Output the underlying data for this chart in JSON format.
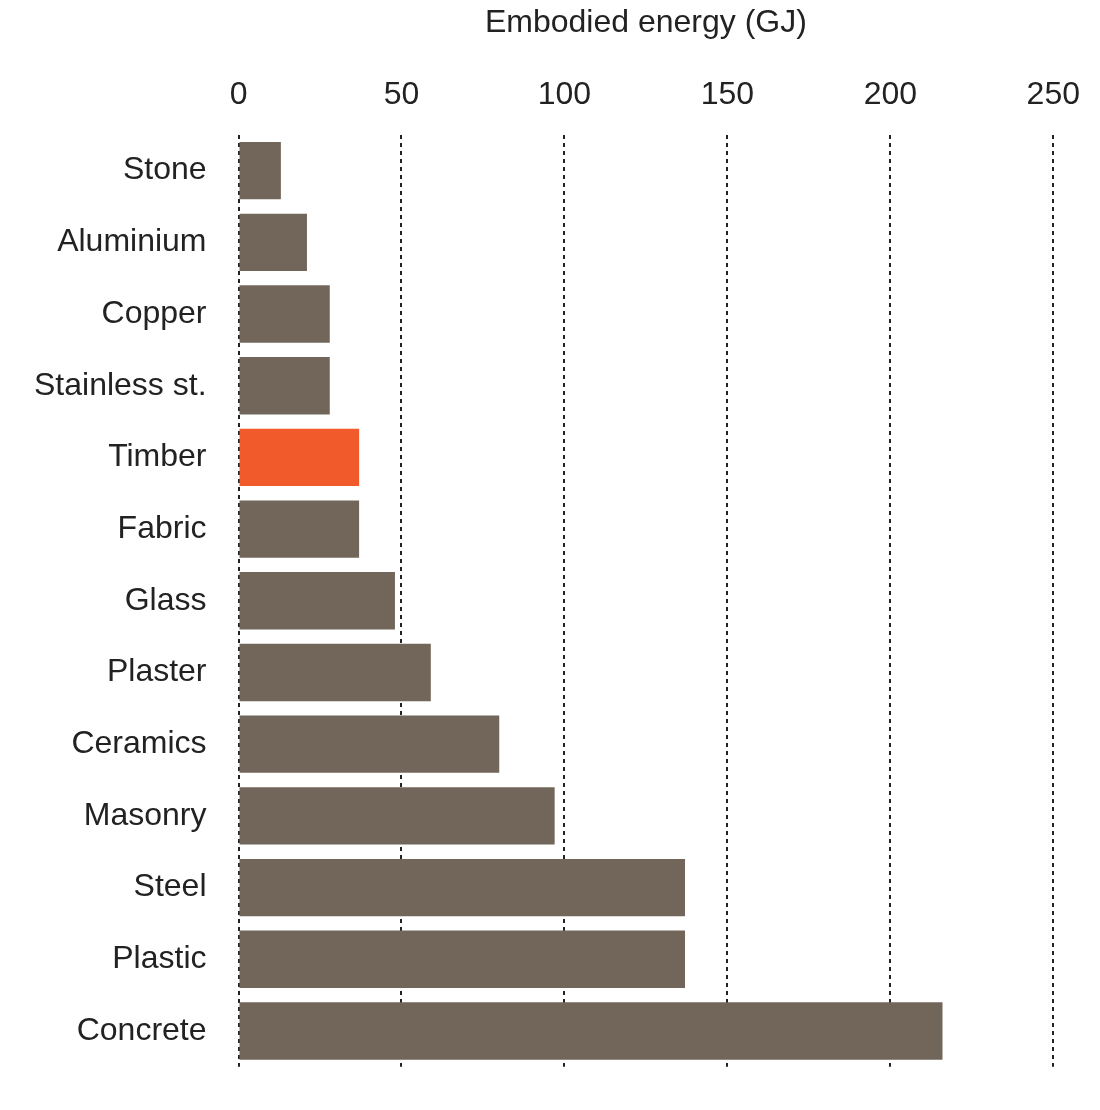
{
  "chart_data": {
    "type": "bar",
    "orientation": "horizontal",
    "xlabel": "Embodied energy (GJ)",
    "categories": [
      "Stone",
      "Aluminium",
      "Copper",
      "Stainless st.",
      "Timber",
      "Fabric",
      "Glass",
      "Plaster",
      "Ceramics",
      "Masonry",
      "Steel",
      "Plastic",
      "Concrete"
    ],
    "values": [
      13,
      21,
      28,
      28,
      37,
      37,
      48,
      59,
      80,
      97,
      137,
      137,
      216
    ],
    "colors": [
      "#72665a",
      "#72665a",
      "#72665a",
      "#72665a",
      "#f15a2b",
      "#72665a",
      "#72665a",
      "#72665a",
      "#72665a",
      "#72665a",
      "#72665a",
      "#72665a",
      "#72665a"
    ],
    "xlim": [
      0,
      250
    ],
    "xticks": [
      0,
      50,
      100,
      150,
      200,
      250
    ],
    "grid": "x",
    "legend": false
  }
}
